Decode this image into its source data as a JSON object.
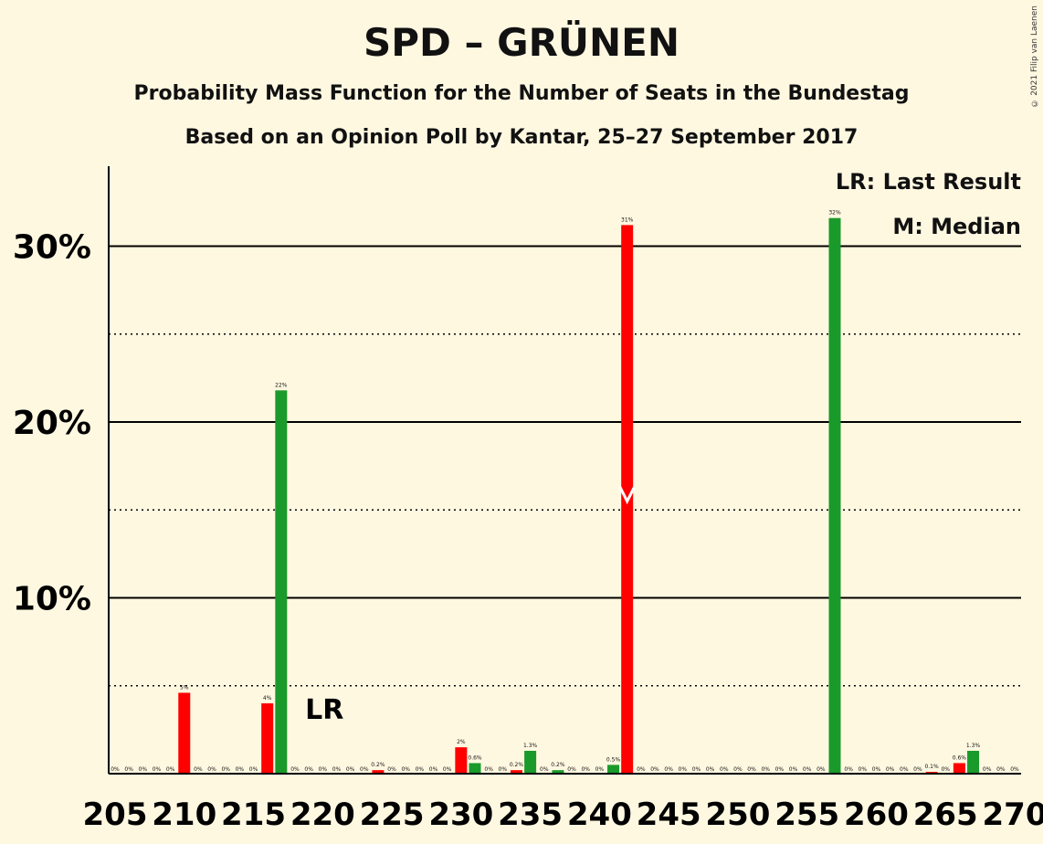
{
  "title": "SPD – GRÜNEN",
  "subtitle1": "Probability Mass Function for the Number of Seats in the Bundestag",
  "subtitle2": "Based on an Opinion Poll by Kantar, 25–27 September 2017",
  "copyright": "© 2021 Filip van Laenen",
  "legend": {
    "lr": "LR: Last Result",
    "m": "M: Median"
  },
  "colors": {
    "red": "#ff0000",
    "green": "#1a9a2a",
    "background": "#fff8e1"
  },
  "chart_data": {
    "type": "bar",
    "xlim": [
      205,
      270
    ],
    "ylim": [
      0,
      34
    ],
    "x_ticks": [
      "205",
      "210",
      "215",
      "220",
      "225",
      "230",
      "235",
      "240",
      "245",
      "250",
      "255",
      "260",
      "265",
      "270"
    ],
    "y_ticks": [
      "10%",
      "20%",
      "30%"
    ],
    "y_tick_values": [
      10,
      20,
      30
    ],
    "minor_grid": [
      5,
      15,
      25
    ],
    "last_result_label": "LR",
    "last_result_seat": 219,
    "median_label": "M",
    "median_seat": 242,
    "bars": [
      {
        "seat": 205,
        "value": 0,
        "label": "0%",
        "color": "red"
      },
      {
        "seat": 206,
        "value": 0,
        "label": "0%",
        "color": "green"
      },
      {
        "seat": 207,
        "value": 0,
        "label": "0%",
        "color": "red"
      },
      {
        "seat": 208,
        "value": 0,
        "label": "0%",
        "color": "green"
      },
      {
        "seat": 209,
        "value": 0,
        "label": "0%",
        "color": "red"
      },
      {
        "seat": 210,
        "value": 4.6,
        "label": "5%",
        "color": "red"
      },
      {
        "seat": 211,
        "value": 0,
        "label": "0%",
        "color": "red"
      },
      {
        "seat": 212,
        "value": 0,
        "label": "0%",
        "color": "green"
      },
      {
        "seat": 213,
        "value": 0,
        "label": "0%",
        "color": "red"
      },
      {
        "seat": 214,
        "value": 0,
        "label": "0%",
        "color": "green"
      },
      {
        "seat": 215,
        "value": 0,
        "label": "0%",
        "color": "red"
      },
      {
        "seat": 216,
        "value": 4.0,
        "label": "4%",
        "color": "red"
      },
      {
        "seat": 217,
        "value": 21.8,
        "label": "22%",
        "color": "green"
      },
      {
        "seat": 218,
        "value": 0,
        "label": "0%",
        "color": "red"
      },
      {
        "seat": 219,
        "value": 0,
        "label": "0%",
        "color": "green"
      },
      {
        "seat": 220,
        "value": 0,
        "label": "0%",
        "color": "red"
      },
      {
        "seat": 221,
        "value": 0,
        "label": "0%",
        "color": "green"
      },
      {
        "seat": 222,
        "value": 0,
        "label": "0%",
        "color": "red"
      },
      {
        "seat": 223,
        "value": 0,
        "label": "0%",
        "color": "green"
      },
      {
        "seat": 224,
        "value": 0.2,
        "label": "0.2%",
        "color": "red"
      },
      {
        "seat": 225,
        "value": 0,
        "label": "0%",
        "color": "green"
      },
      {
        "seat": 226,
        "value": 0,
        "label": "0%",
        "color": "red"
      },
      {
        "seat": 227,
        "value": 0,
        "label": "0%",
        "color": "green"
      },
      {
        "seat": 228,
        "value": 0,
        "label": "0%",
        "color": "red"
      },
      {
        "seat": 229,
        "value": 0,
        "label": "0%",
        "color": "green"
      },
      {
        "seat": 230,
        "value": 1.5,
        "label": "2%",
        "color": "red"
      },
      {
        "seat": 231,
        "value": 0.6,
        "label": "0.6%",
        "color": "green"
      },
      {
        "seat": 232,
        "value": 0,
        "label": "0%",
        "color": "red"
      },
      {
        "seat": 233,
        "value": 0,
        "label": "0%",
        "color": "green"
      },
      {
        "seat": 234,
        "value": 0.2,
        "label": "0.2%",
        "color": "red"
      },
      {
        "seat": 235,
        "value": 1.3,
        "label": "1.3%",
        "color": "green"
      },
      {
        "seat": 236,
        "value": 0,
        "label": "0%",
        "color": "red"
      },
      {
        "seat": 237,
        "value": 0.2,
        "label": "0.2%",
        "color": "green"
      },
      {
        "seat": 238,
        "value": 0,
        "label": "0%",
        "color": "red"
      },
      {
        "seat": 239,
        "value": 0,
        "label": "0%",
        "color": "green"
      },
      {
        "seat": 240,
        "value": 0,
        "label": "0%",
        "color": "red"
      },
      {
        "seat": 241,
        "value": 0.5,
        "label": "0.5%",
        "color": "green"
      },
      {
        "seat": 242,
        "value": 31.2,
        "label": "31%",
        "color": "red"
      },
      {
        "seat": 243,
        "value": 0,
        "label": "0%",
        "color": "green"
      },
      {
        "seat": 244,
        "value": 0,
        "label": "0%",
        "color": "red"
      },
      {
        "seat": 245,
        "value": 0,
        "label": "0%",
        "color": "green"
      },
      {
        "seat": 246,
        "value": 0,
        "label": "0%",
        "color": "red"
      },
      {
        "seat": 247,
        "value": 0,
        "label": "0%",
        "color": "green"
      },
      {
        "seat": 248,
        "value": 0,
        "label": "0%",
        "color": "red"
      },
      {
        "seat": 249,
        "value": 0,
        "label": "0%",
        "color": "green"
      },
      {
        "seat": 250,
        "value": 0,
        "label": "0%",
        "color": "red"
      },
      {
        "seat": 251,
        "value": 0,
        "label": "0%",
        "color": "green"
      },
      {
        "seat": 252,
        "value": 0,
        "label": "0%",
        "color": "red"
      },
      {
        "seat": 253,
        "value": 0,
        "label": "0%",
        "color": "green"
      },
      {
        "seat": 254,
        "value": 0,
        "label": "0%",
        "color": "red"
      },
      {
        "seat": 255,
        "value": 0,
        "label": "0%",
        "color": "green"
      },
      {
        "seat": 256,
        "value": 0,
        "label": "0%",
        "color": "red"
      },
      {
        "seat": 257,
        "value": 31.6,
        "label": "32%",
        "color": "green"
      },
      {
        "seat": 258,
        "value": 0,
        "label": "0%",
        "color": "red"
      },
      {
        "seat": 259,
        "value": 0,
        "label": "0%",
        "color": "green"
      },
      {
        "seat": 260,
        "value": 0,
        "label": "0%",
        "color": "red"
      },
      {
        "seat": 261,
        "value": 0,
        "label": "0%",
        "color": "green"
      },
      {
        "seat": 262,
        "value": 0,
        "label": "0%",
        "color": "red"
      },
      {
        "seat": 263,
        "value": 0,
        "label": "0%",
        "color": "green"
      },
      {
        "seat": 264,
        "value": 0.1,
        "label": "0.1%",
        "color": "red"
      },
      {
        "seat": 265,
        "value": 0,
        "label": "0%",
        "color": "green"
      },
      {
        "seat": 266,
        "value": 0.6,
        "label": "0.6%",
        "color": "red"
      },
      {
        "seat": 267,
        "value": 1.3,
        "label": "1.3%",
        "color": "green"
      },
      {
        "seat": 268,
        "value": 0,
        "label": "0%",
        "color": "red"
      },
      {
        "seat": 269,
        "value": 0,
        "label": "0%",
        "color": "green"
      },
      {
        "seat": 270,
        "value": 0,
        "label": "0%",
        "color": "red"
      }
    ]
  }
}
